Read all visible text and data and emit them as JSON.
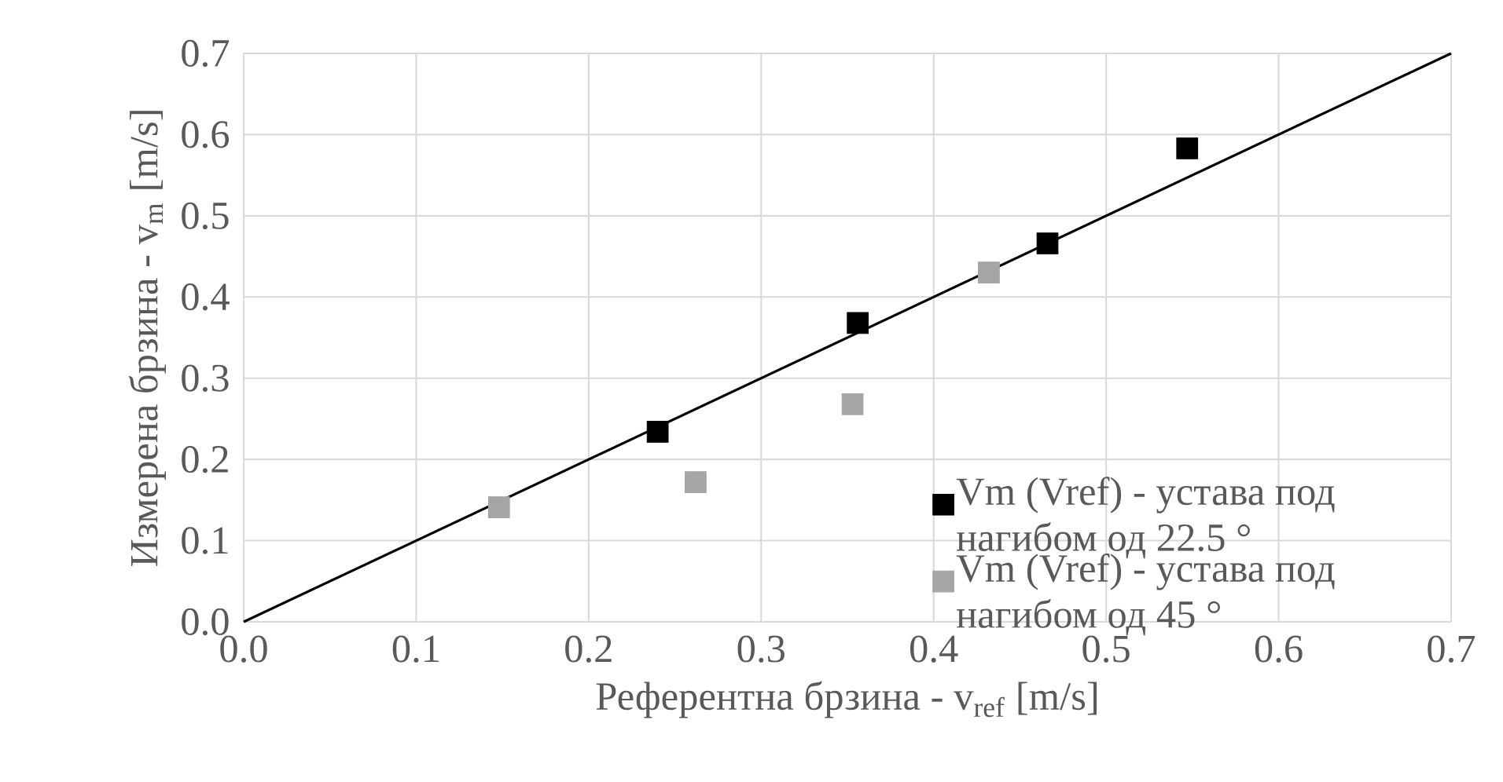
{
  "chart_data": {
    "type": "scatter",
    "xlabel": "Референтна брзина - v$_{ref}$  [m/s]",
    "ylabel": "Измерена брзина - v$_{m}$  [m/s]",
    "xlim": [
      0,
      0.7
    ],
    "ylim": [
      0,
      0.7
    ],
    "xticks": [
      {
        "value": 0,
        "label": "0.0"
      },
      0.1,
      0.2,
      0.3,
      0.4,
      0.5,
      0.6,
      0.7
    ],
    "yticks": [
      {
        "value": 0,
        "label": "0.0"
      },
      0.1,
      0.2,
      0.3,
      0.4,
      0.5,
      0.6,
      0.7
    ],
    "grid": true,
    "legend": "bottom right",
    "marker": "square",
    "series": [
      {
        "name": "Vm (Vref) - устава под нагибом од 22.5 °",
        "color": "#000000",
        "x": [
          0.24,
          0.356,
          0.466,
          0.547
        ],
        "values": [
          0.234,
          0.368,
          0.466,
          0.583
        ]
      },
      {
        "name": "Vm (Vref) - устава под нагибом од 45 °",
        "color": "#a5a5a5",
        "x": [
          0.148,
          0.262,
          0.353,
          0.432
        ],
        "values": [
          0.141,
          0.172,
          0.268,
          0.43
        ]
      },
      {
        "type": "line",
        "color": "#000000",
        "marker": "none",
        "line_style": "solid",
        "x": [
          0,
          0.7
        ],
        "values": [
          0,
          0.7
        ]
      }
    ]
  }
}
